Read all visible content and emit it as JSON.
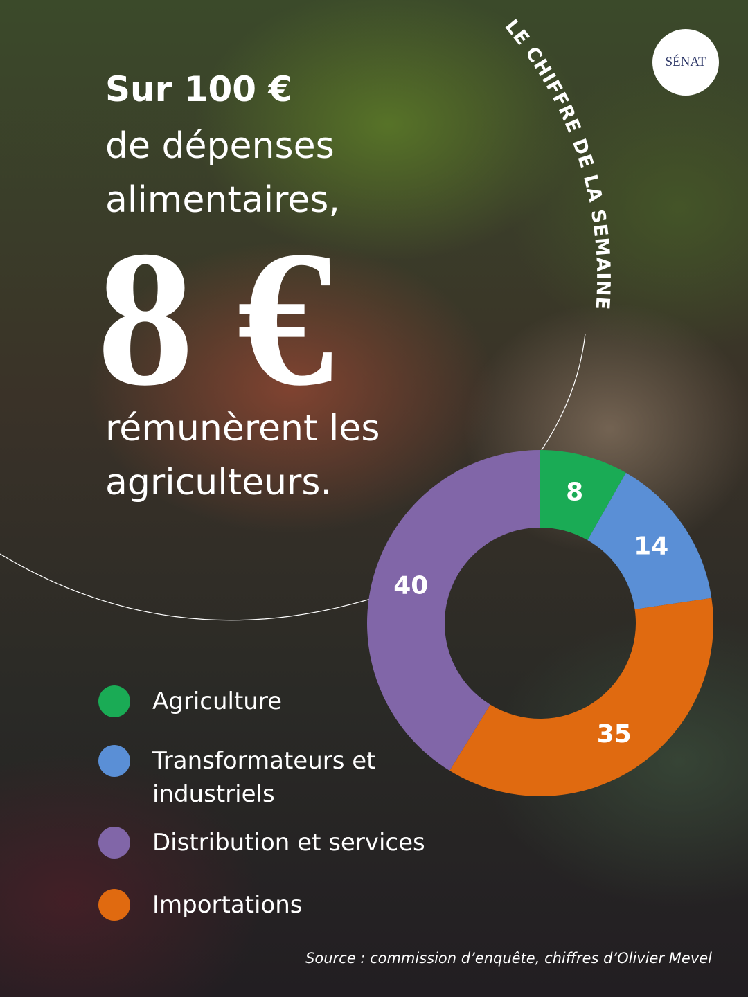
{
  "header": {
    "logo": "SÉNAT",
    "tagline": "LE CHIFFRE DE LA SEMAINE",
    "title_lines": [
      "Sur 100 €",
      "de dépenses",
      "alimentaires,"
    ],
    "highlight": "8 €",
    "subtitle_lines": [
      "rémunèrent les",
      "agriculteurs."
    ]
  },
  "chart_data": {
    "type": "donut",
    "categories": [
      "Agriculture",
      "Transformateurs et industriels",
      "Importations",
      "Distribution et services"
    ],
    "values": [
      8,
      14,
      35,
      40
    ],
    "colors": [
      "#1aab55",
      "#5a8fd6",
      "#e06a10",
      "#8166a8"
    ]
  },
  "source": "Source : commission d’enquête, chiffres d’Olivier Mevel"
}
